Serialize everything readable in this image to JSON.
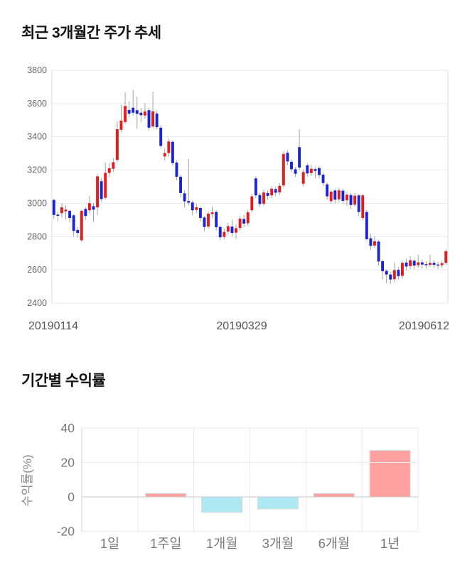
{
  "chart_data": [
    {
      "type": "candlestick",
      "title": "최근 3개월간 주가 추세",
      "ylim": [
        2400,
        3800
      ],
      "y_ticks": [
        3800,
        3600,
        3400,
        3200,
        3000,
        2800,
        2600,
        2400
      ],
      "x_tick_labels": [
        "20190114",
        "20190329",
        "20190612"
      ],
      "grid": true,
      "legend": "none",
      "colors": {
        "up": "#e41c1c",
        "down": "#1b23d2",
        "wick": "#999999",
        "grid": "#eaeaea",
        "axis": "#dcdcdc",
        "tick_text": "#666666",
        "x_tick_text": "#555555"
      },
      "ohlc_order": [
        "open",
        "high",
        "low",
        "close"
      ],
      "candles": [
        [
          3020,
          3028,
          2905,
          2930
        ],
        [
          2932,
          2948,
          2890,
          2925
        ],
        [
          2941,
          3000,
          2915,
          2976
        ],
        [
          2952,
          2988,
          2900,
          2962
        ],
        [
          2955,
          2962,
          2885,
          2912
        ],
        [
          2928,
          2936,
          2800,
          2834
        ],
        [
          2840,
          2856,
          2795,
          2822
        ],
        [
          2778,
          2962,
          2770,
          2955
        ],
        [
          2966,
          2978,
          2900,
          2924
        ],
        [
          2958,
          3046,
          2940,
          3001
        ],
        [
          2983,
          3002,
          2888,
          2962
        ],
        [
          2976,
          3178,
          2930,
          3162
        ],
        [
          3133,
          3152,
          3008,
          3026
        ],
        [
          3033,
          3246,
          3022,
          3183
        ],
        [
          3183,
          3242,
          3158,
          3211
        ],
        [
          3208,
          3272,
          3188,
          3247
        ],
        [
          3261,
          3492,
          3248,
          3446
        ],
        [
          3442,
          3592,
          3428,
          3497
        ],
        [
          3489,
          3668,
          3478,
          3585
        ],
        [
          3561,
          3612,
          3518,
          3539
        ],
        [
          3575,
          3682,
          3528,
          3545
        ],
        [
          3560,
          3642,
          3448,
          3538
        ],
        [
          3545,
          3572,
          3488,
          3530
        ],
        [
          3528,
          3602,
          3508,
          3552
        ],
        [
          3560,
          3576,
          3438,
          3455
        ],
        [
          3462,
          3672,
          3452,
          3553
        ],
        [
          3540,
          3556,
          3445,
          3458
        ],
        [
          3455,
          3470,
          3330,
          3345
        ],
        [
          3282,
          3332,
          3258,
          3302
        ],
        [
          3302,
          3388,
          3280,
          3372
        ],
        [
          3370,
          3380,
          3225,
          3242
        ],
        [
          3245,
          3258,
          3138,
          3160
        ],
        [
          3160,
          3172,
          3038,
          3062
        ],
        [
          3060,
          3078,
          2975,
          3012
        ],
        [
          3014,
          3268,
          2988,
          3004
        ],
        [
          3005,
          3016,
          2930,
          2958
        ],
        [
          2960,
          2998,
          2940,
          2976
        ],
        [
          2972,
          2981,
          2890,
          2912
        ],
        [
          2915,
          2926,
          2833,
          2858
        ],
        [
          2860,
          2951,
          2848,
          2938
        ],
        [
          2936,
          2980,
          2912,
          2946
        ],
        [
          2948,
          2960,
          2836,
          2856
        ],
        [
          2858,
          2868,
          2778,
          2796
        ],
        [
          2798,
          2848,
          2782,
          2828
        ],
        [
          2830,
          2884,
          2812,
          2862
        ],
        [
          2860,
          2902,
          2800,
          2822
        ],
        [
          2824,
          2872,
          2785,
          2850
        ],
        [
          2852,
          2922,
          2838,
          2908
        ],
        [
          2906,
          2931,
          2858,
          2878
        ],
        [
          2880,
          2962,
          2866,
          2946
        ],
        [
          2958,
          3058,
          2944,
          3042
        ],
        [
          3150,
          3162,
          3032,
          3048
        ],
        [
          3050,
          3061,
          2978,
          2996
        ],
        [
          2998,
          3081,
          2984,
          3065
        ],
        [
          3062,
          3078,
          3022,
          3045
        ],
        [
          3048,
          3102,
          3032,
          3088
        ],
        [
          3086,
          3098,
          3042,
          3064
        ],
        [
          3066,
          3121,
          3052,
          3105
        ],
        [
          3108,
          3312,
          3096,
          3297
        ],
        [
          3304,
          3318,
          3232,
          3252
        ],
        [
          3250,
          3262,
          3186,
          3205
        ],
        [
          3205,
          3218,
          3158,
          3178
        ],
        [
          3338,
          3445,
          3202,
          3215
        ],
        [
          3118,
          3205,
          3102,
          3188
        ],
        [
          3228,
          3242,
          3160,
          3180
        ],
        [
          3182,
          3232,
          3165,
          3208
        ],
        [
          3206,
          3217,
          3150,
          3195
        ],
        [
          3212,
          3222,
          3150,
          3170
        ],
        [
          3172,
          3184,
          3104,
          3122
        ],
        [
          3114,
          3126,
          3022,
          3042
        ],
        [
          3013,
          3083,
          2998,
          3070
        ],
        [
          3077,
          3086,
          3000,
          3022
        ],
        [
          3024,
          3092,
          3008,
          3078
        ],
        [
          3076,
          3088,
          2996,
          3015
        ],
        [
          3018,
          3068,
          2985,
          3052
        ],
        [
          3050,
          3062,
          2968,
          2990
        ],
        [
          2992,
          3063,
          2980,
          3046
        ],
        [
          3048,
          3056,
          2926,
          2948
        ],
        [
          2912,
          3056,
          2898,
          3048
        ],
        [
          2948,
          2958,
          2776,
          2784
        ],
        [
          2790,
          2818,
          2718,
          2744
        ],
        [
          2746,
          2803,
          2731,
          2772
        ],
        [
          2770,
          2779,
          2626,
          2650
        ],
        [
          2652,
          2662,
          2543,
          2592
        ],
        [
          2594,
          2603,
          2518,
          2572
        ],
        [
          2572,
          2588,
          2514,
          2542
        ],
        [
          2544,
          2643,
          2528,
          2598
        ],
        [
          2600,
          2617,
          2541,
          2562
        ],
        [
          2564,
          2657,
          2546,
          2642
        ],
        [
          2644,
          2667,
          2596,
          2620
        ],
        [
          2622,
          2682,
          2606,
          2658
        ],
        [
          2655,
          2664,
          2604,
          2626
        ],
        [
          2628,
          2692,
          2612,
          2645
        ],
        [
          2645,
          2662,
          2608,
          2632
        ],
        [
          2634,
          2651,
          2606,
          2628
        ],
        [
          2630,
          2690,
          2616,
          2642
        ],
        [
          2642,
          2658,
          2610,
          2630
        ],
        [
          2632,
          2648,
          2606,
          2626
        ],
        [
          2628,
          2655,
          2612,
          2640
        ],
        [
          2642,
          2723,
          2630,
          2712
        ]
      ]
    },
    {
      "type": "bar",
      "title": "기간별 수익률",
      "ylabel": "수익률(%)",
      "categories": [
        "1일",
        "1주일",
        "1개월",
        "3개월",
        "6개월",
        "1년"
      ],
      "values": [
        0,
        2,
        -9,
        -7,
        2,
        27
      ],
      "ylim": [
        -20,
        40
      ],
      "y_ticks": [
        40,
        20,
        0,
        -20
      ],
      "grid": true,
      "legend": "none",
      "colors": {
        "positive": "#ffa1a1",
        "negative": "#aee8f2",
        "bar_border": "#d8d8d8",
        "grid": "#e8e8e8",
        "zero_line": "#c9c9c9",
        "axis": "#d5d5d5",
        "tick_text": "#777777",
        "label_text": "#8a8a8a"
      }
    }
  ]
}
